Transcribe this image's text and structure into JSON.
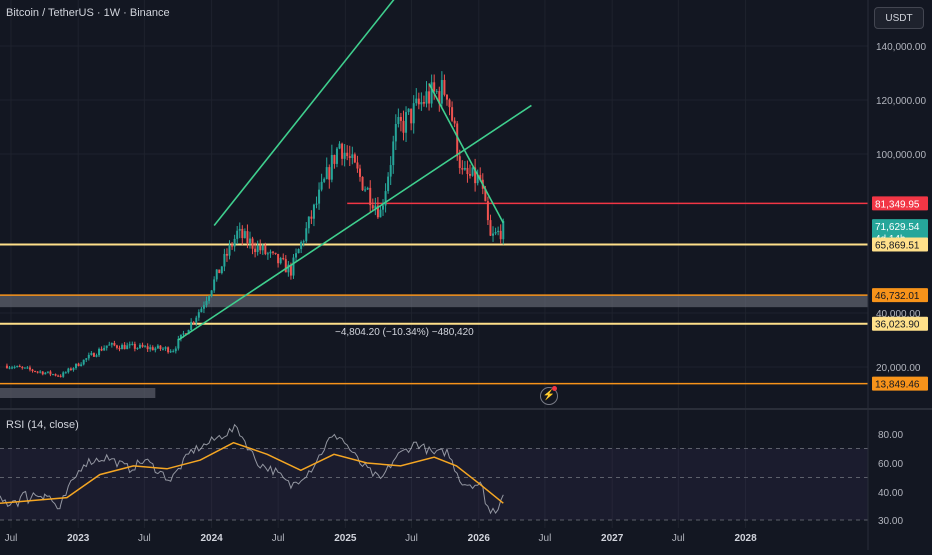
{
  "chart_title": "Bitcoin / TetherUS · 1W · Binance",
  "currency_button": "USDT",
  "rsi_title": "RSI (14, close)",
  "measure_label": "−4,804.20 (−10.34%) −480,420",
  "replay_icon": "lightning-icon",
  "colors": {
    "background": "#131722",
    "up": "#26a69a",
    "down": "#ef5350",
    "channel": "#3fcf8e",
    "red_level": "#f23645",
    "yellow_level": "#ffe08a",
    "orange_level": "#f7931a",
    "rsi_line": "#b2b5be",
    "rsi_ma": "#f5a623"
  },
  "chart_data": [
    {
      "type": "candlestick",
      "panel": "price",
      "y_ticks": [
        "20,000.00",
        "40,000.00",
        "100,000.00",
        "120,000.00",
        "140,000.00"
      ],
      "x_ticks": [
        "Jul",
        "2023",
        "Jul",
        "2024",
        "Jul",
        "2025",
        "Jul",
        "2026",
        "Jul",
        "2027",
        "Jul",
        "2028"
      ],
      "waypoints": [
        [
          "2022-06-20",
          20500
        ],
        [
          "2022-11-14",
          16800
        ],
        [
          "2023-03-20",
          28000
        ],
        [
          "2023-09-18",
          26500
        ],
        [
          "2023-12-04",
          42000
        ],
        [
          "2024-03-11",
          70000
        ],
        [
          "2024-08-05",
          56000
        ],
        [
          "2024-12-16",
          104000
        ],
        [
          "2025-04-07",
          78000
        ],
        [
          "2025-05-19",
          108000
        ],
        [
          "2025-08-11",
          121000
        ],
        [
          "2025-10-06",
          124000
        ],
        [
          "2025-11-17",
          92000
        ],
        [
          "2026-01-05",
          90000
        ],
        [
          "2026-02-02",
          68000
        ],
        [
          "2026-03-09",
          71629.54
        ]
      ],
      "price_labels": [
        {
          "label": "81,349.95",
          "kind": "red"
        },
        {
          "label": "71,629.54",
          "sub": "4d 14h",
          "kind": "current"
        },
        {
          "label": "65,869.51",
          "kind": "yellow"
        },
        {
          "label": "46,732.01",
          "kind": "orange"
        },
        {
          "label": "36,023.90",
          "kind": "yellow"
        },
        {
          "label": "13,849.46",
          "kind": "orange"
        }
      ],
      "levels": [
        {
          "value": 81349.95,
          "kind": "red",
          "from": "2025-01-06"
        },
        {
          "value": 65869.51,
          "kind": "yellow",
          "from": "2022-06-01"
        },
        {
          "value": 46732.01,
          "kind": "orange",
          "from": "2022-06-01",
          "zone": true
        },
        {
          "value": 36023.9,
          "kind": "yellow",
          "from": "2022-06-01"
        },
        {
          "value": 13849.46,
          "kind": "orange",
          "from": "2022-06-01"
        }
      ],
      "trendlines": [
        {
          "from": [
            "2024-01-08",
            73000
          ],
          "to": [
            "2025-08-25",
            175000
          ]
        },
        {
          "from": [
            "2023-10-02",
            30000
          ],
          "to": [
            "2026-05-25",
            118000
          ]
        },
        {
          "from": [
            "2025-08-18",
            126000
          ],
          "to": [
            "2026-03-09",
            74000
          ]
        }
      ],
      "shaded_zones": [
        {
          "from": "2022-06-01",
          "to": "2023-07-31",
          "low": 12000,
          "high": 13000
        }
      ]
    },
    {
      "type": "line",
      "panel": "rsi",
      "name": "RSI (14, close)",
      "y_ticks": [
        "30.00",
        "40.00",
        "60.00",
        "80.00"
      ],
      "bands": [
        30,
        50,
        70
      ],
      "rsi": [
        [
          "2022-06-01",
          36
        ],
        [
          "2022-10-01",
          40
        ],
        [
          "2022-11-14",
          33
        ],
        [
          "2023-01-16",
          60
        ],
        [
          "2023-03-20",
          64
        ],
        [
          "2023-05-22",
          56
        ],
        [
          "2023-07-03",
          62
        ],
        [
          "2023-09-11",
          48
        ],
        [
          "2023-11-06",
          68
        ],
        [
          "2023-12-11",
          72
        ],
        [
          "2024-02-05",
          80
        ],
        [
          "2024-03-11",
          84
        ],
        [
          "2024-05-06",
          60
        ],
        [
          "2024-06-24",
          54
        ],
        [
          "2024-08-05",
          44
        ],
        [
          "2024-09-30",
          56
        ],
        [
          "2024-11-18",
          76
        ],
        [
          "2024-12-16",
          79
        ],
        [
          "2025-02-10",
          60
        ],
        [
          "2025-04-07",
          48
        ],
        [
          "2025-05-19",
          64
        ],
        [
          "2025-07-14",
          74
        ],
        [
          "2025-09-01",
          66
        ],
        [
          "2025-10-06",
          68
        ],
        [
          "2025-11-17",
          46
        ],
        [
          "2026-01-05",
          45
        ],
        [
          "2026-02-02",
          32
        ],
        [
          "2026-02-23",
          36
        ],
        [
          "2026-03-09",
          39
        ]
      ],
      "rsi_ma": [
        [
          "2022-06-01",
          36
        ],
        [
          "2022-12-01",
          38
        ],
        [
          "2023-03-01",
          52
        ],
        [
          "2023-06-01",
          58
        ],
        [
          "2023-09-01",
          56
        ],
        [
          "2023-12-01",
          62
        ],
        [
          "2024-03-01",
          74
        ],
        [
          "2024-06-01",
          66
        ],
        [
          "2024-09-01",
          55
        ],
        [
          "2024-12-01",
          66
        ],
        [
          "2025-03-01",
          60
        ],
        [
          "2025-06-01",
          58
        ],
        [
          "2025-09-01",
          64
        ],
        [
          "2025-11-01",
          58
        ],
        [
          "2026-01-01",
          46
        ],
        [
          "2026-03-09",
          36
        ]
      ]
    }
  ]
}
